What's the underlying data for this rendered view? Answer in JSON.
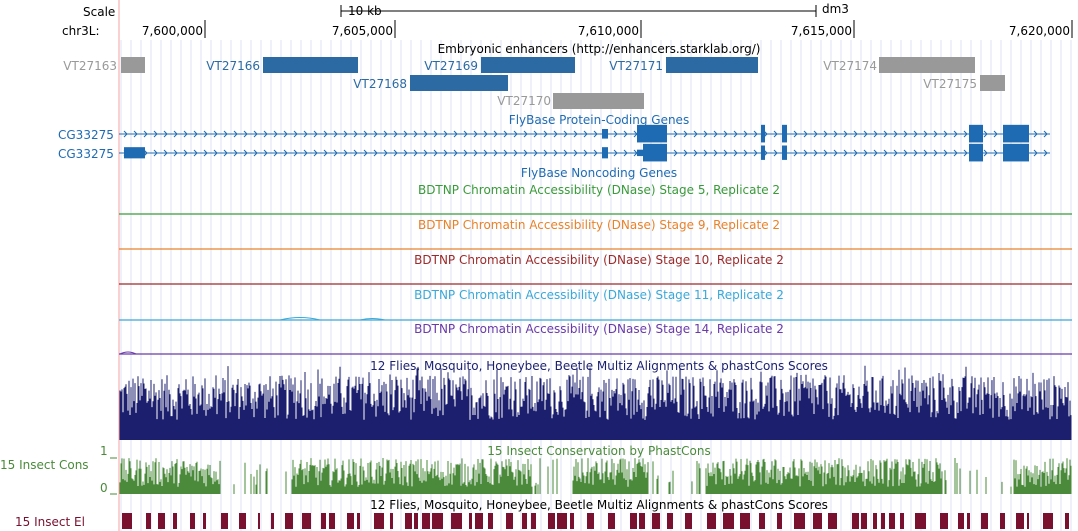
{
  "browser": {
    "scale_label": "Scale",
    "scale_value": "10 kb",
    "assembly": "dm3",
    "chrom_label": "chr3L:",
    "positions": [
      "7,600,000",
      "7,605,000",
      "7,610,000",
      "7,615,000",
      "7,620,000"
    ]
  },
  "tracks": {
    "enhancers": {
      "title": "Embryonic enhancers (http://enhancers.starklab.org/)",
      "items": [
        {
          "name": "VT27163",
          "color": "#999999"
        },
        {
          "name": "VT27166",
          "color": "#2b6aa3"
        },
        {
          "name": "VT27169",
          "color": "#2b6aa3"
        },
        {
          "name": "VT27171",
          "color": "#2b6aa3"
        },
        {
          "name": "VT27174",
          "color": "#999999"
        },
        {
          "name": "VT27168",
          "color": "#2b6aa3"
        },
        {
          "name": "VT27175",
          "color": "#999999"
        },
        {
          "name": "VT27170",
          "color": "#999999"
        }
      ]
    },
    "protein_coding": {
      "title": "FlyBase Protein-Coding Genes",
      "genes": [
        "CG33275",
        "CG33275"
      ],
      "color": "#1f6bb3"
    },
    "noncoding": {
      "title": "FlyBase Noncoding Genes",
      "color": "#1f6bb3"
    },
    "dnase": [
      {
        "title": "BDTNP Chromatin Accessibility (DNase) Stage 5, Replicate 2",
        "color": "#3a9a3a"
      },
      {
        "title": "BDTNP Chromatin Accessibility (DNase) Stage 9, Replicate 2",
        "color": "#e8822a"
      },
      {
        "title": "BDTNP Chromatin Accessibility (DNase) Stage 10, Replicate 2",
        "color": "#9c2a2a"
      },
      {
        "title": "BDTNP Chromatin Accessibility (DNase) Stage 11, Replicate 2",
        "color": "#3aa8d8"
      },
      {
        "title": "BDTNP Chromatin Accessibility (DNase) Stage 14, Replicate 2",
        "color": "#6a3aa8"
      }
    ],
    "multiz": {
      "title": "12 Flies, Mosquito, Honeybee, Beetle Multiz Alignments & phastCons Scores",
      "color": "#1b1f6e"
    },
    "phastcons": {
      "title": "15 Insect Conservation by PhastCons",
      "side_label": "15 Insect Cons",
      "ymax": "1",
      "ymin": "0",
      "color": "#4a8a3a"
    },
    "multiz2": {
      "title": "12 Flies, Mosquito, Honeybee, Beetle Multiz Alignments & phastCons Scores"
    },
    "elements": {
      "side_label": "15 Insect El",
      "color": "#7a1030"
    }
  }
}
